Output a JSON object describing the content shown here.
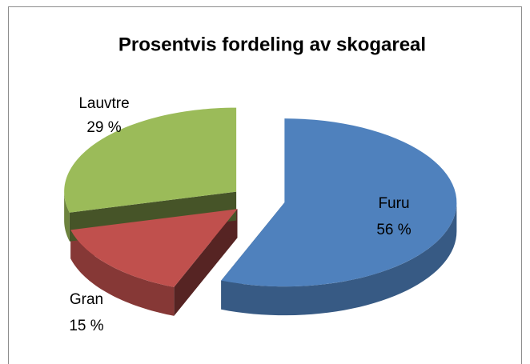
{
  "chart_data": {
    "type": "pie3d",
    "title": "Prosentvis fordeling av skogareal",
    "categories": [
      "Furu",
      "Gran",
      "Lauvtre"
    ],
    "values": [
      56,
      15,
      29
    ],
    "value_labels": [
      "56 %",
      "15 %",
      "29 %"
    ],
    "colors": [
      "#4f81bd",
      "#c0504d",
      "#9bbb59"
    ]
  }
}
